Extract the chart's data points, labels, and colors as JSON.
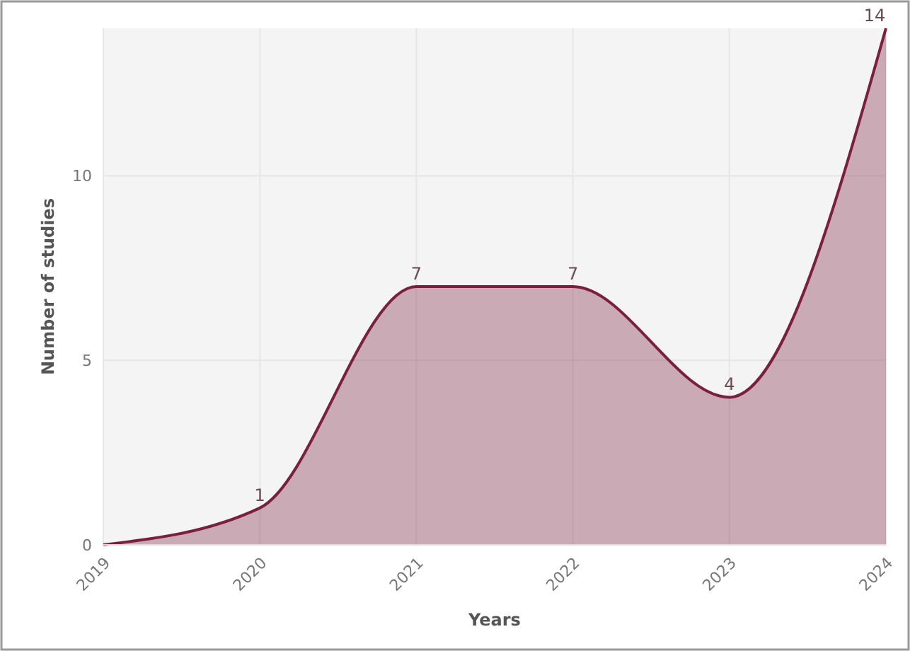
{
  "chart_data": {
    "type": "area",
    "xlabel": "Years",
    "ylabel": "Number of studies",
    "x": [
      2019,
      2020,
      2021,
      2022,
      2023,
      2024
    ],
    "series": [
      {
        "color": "#7a1f3d",
        "values": [
          0,
          1,
          7,
          7,
          4,
          14
        ],
        "value_labels": [
          null,
          "1",
          "7",
          "7",
          "4",
          "14"
        ]
      }
    ],
    "xlim": [
      2019,
      2024
    ],
    "xticks": [
      2019,
      2020,
      2021,
      2022,
      2023,
      2024
    ],
    "ylim": [
      0,
      14
    ],
    "yticks": [
      0,
      5,
      10
    ],
    "grid": true
  }
}
